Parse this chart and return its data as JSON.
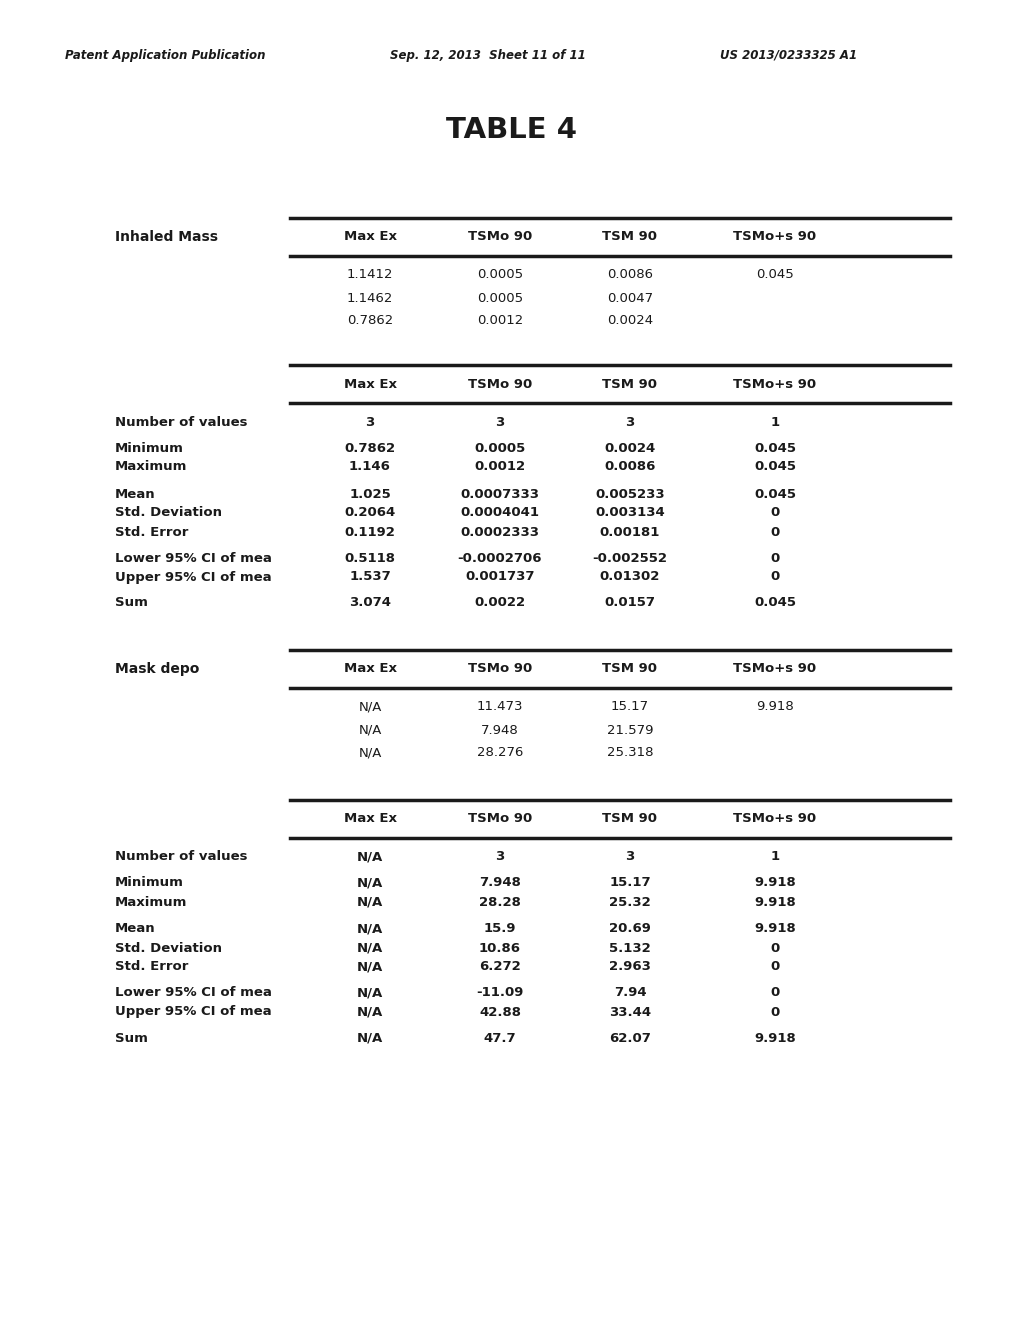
{
  "header_left": "Patent Application Publication",
  "header_mid": "Sep. 12, 2013  Sheet 11 of 11",
  "header_right": "US 2013/0233325 A1",
  "title": "TABLE 4",
  "col_headers": [
    "Max Ex",
    "TSMo 90",
    "TSM 90",
    "TSMo+s 90"
  ],
  "section1_label": "Inhaled Mass",
  "section1_data_rows": [
    [
      "1.1412",
      "0.0005",
      "0.0086",
      "0.045"
    ],
    [
      "1.1462",
      "0.0005",
      "0.0047",
      ""
    ],
    [
      "0.7862",
      "0.0012",
      "0.0024",
      ""
    ]
  ],
  "section2_rows": [
    [
      "Number of values",
      "3",
      "3",
      "3",
      "1"
    ],
    [
      "",
      "",
      "",
      "",
      ""
    ],
    [
      "Minimum",
      "0.7862",
      "0.0005",
      "0.0024",
      "0.045"
    ],
    [
      "Maximum",
      "1.146",
      "0.0012",
      "0.0086",
      "0.045"
    ],
    [
      "",
      "",
      "",
      "",
      ""
    ],
    [
      "Mean",
      "1.025",
      "0.0007333",
      "0.005233",
      "0.045"
    ],
    [
      "Std. Deviation",
      "0.2064",
      "0.0004041",
      "0.003134",
      "0"
    ],
    [
      "Std. Error",
      "0.1192",
      "0.0002333",
      "0.00181",
      "0"
    ],
    [
      "",
      "",
      "",
      "",
      ""
    ],
    [
      "Lower 95% CI of mea",
      "0.5118",
      "-0.0002706",
      "-0.002552",
      "0"
    ],
    [
      "Upper 95% CI of mea",
      "1.537",
      "0.001737",
      "0.01302",
      "0"
    ],
    [
      "",
      "",
      "",
      "",
      ""
    ],
    [
      "Sum",
      "3.074",
      "0.0022",
      "0.0157",
      "0.045"
    ]
  ],
  "section3_label": "Mask depo",
  "section3_data_rows": [
    [
      "N/A",
      "11.473",
      "15.17",
      "9.918"
    ],
    [
      "N/A",
      "7.948",
      "21.579",
      ""
    ],
    [
      "N/A",
      "28.276",
      "25.318",
      ""
    ]
  ],
  "section4_rows": [
    [
      "Number of values",
      "N/A",
      "3",
      "3",
      "1"
    ],
    [
      "",
      "",
      "",
      "",
      ""
    ],
    [
      "Minimum",
      "N/A",
      "7.948",
      "15.17",
      "9.918"
    ],
    [
      "Maximum",
      "N/A",
      "28.28",
      "25.32",
      "9.918"
    ],
    [
      "",
      "",
      "",
      "",
      ""
    ],
    [
      "Mean",
      "N/A",
      "15.9",
      "20.69",
      "9.918"
    ],
    [
      "Std. Deviation",
      "N/A",
      "10.86",
      "5.132",
      "0"
    ],
    [
      "Std. Error",
      "N/A",
      "6.272",
      "2.963",
      "0"
    ],
    [
      "",
      "",
      "",
      "",
      ""
    ],
    [
      "Lower 95% CI of mea",
      "N/A",
      "-11.09",
      "7.94",
      "0"
    ],
    [
      "Upper 95% CI of mea",
      "N/A",
      "42.88",
      "33.44",
      "0"
    ],
    [
      "",
      "",
      "",
      "",
      ""
    ],
    [
      "Sum",
      "N/A",
      "47.7",
      "62.07",
      "9.918"
    ]
  ],
  "bg_color": "#ffffff",
  "text_color": "#1a1a1a",
  "font_size_header": 8.5,
  "font_size_title": 21,
  "font_size_body": 9.5
}
